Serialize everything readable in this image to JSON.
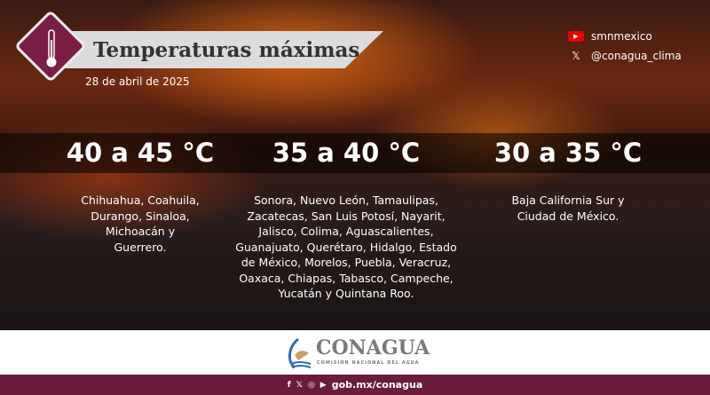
{
  "header": {
    "title": "Temperaturas máximas",
    "date": "28 de abril de 2025"
  },
  "social": [
    {
      "icon": "youtube-icon",
      "handle": "smnmexico"
    },
    {
      "icon": "x-icon",
      "handle": "@conagua_clima"
    }
  ],
  "ranges": [
    {
      "range": "40 a 45 °C",
      "states": "Chihuahua, Coahuila, Durango, Sinaloa, Michoacán  y Guerrero."
    },
    {
      "range": "35 a 40 °C",
      "states": "Sonora, Nuevo León, Tamaulipas, Zacatecas, San Luis Potosí, Nayarit, Jalisco, Colima, Aguascalientes, Guanajuato, Querétaro, Hidalgo, Estado de México, Morelos, Puebla, Veracruz, Oaxaca, Chiapas, Tabasco, Campeche, Yucatán y Quintana Roo."
    },
    {
      "range": "30 a 35 °C",
      "states": "Baja California Sur y Ciudad de México."
    }
  ],
  "footer": {
    "brand": "CONAGUA",
    "subtitle": "COMISIÓN NACIONAL DEL AGUA",
    "url": "gob.mx/conagua",
    "accent": "#6b1b3c"
  }
}
